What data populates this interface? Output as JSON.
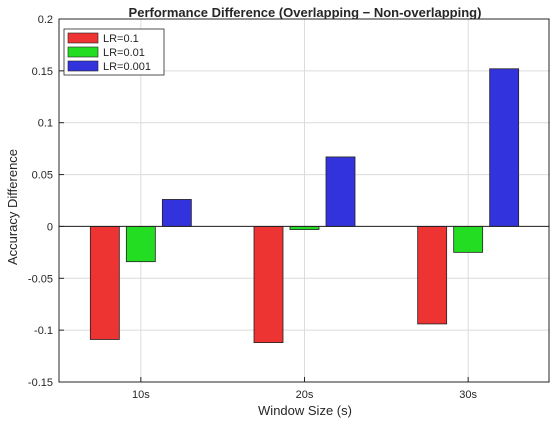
{
  "chart_data": {
    "type": "bar",
    "title": "Performance Difference (Overlapping − Non-overlapping)",
    "xlabel": "Window Size (s)",
    "ylabel": "Accuracy Difference",
    "categories": [
      "10s",
      "20s",
      "30s"
    ],
    "ylim": [
      -0.15,
      0.2
    ],
    "yticks": [
      -0.15,
      -0.1,
      -0.05,
      0,
      0.05,
      0.1,
      0.15,
      0.2
    ],
    "ytick_labels": [
      "-0.15",
      "-0.1",
      "-0.05",
      "0",
      "0.05",
      "0.1",
      "0.15",
      "0.2"
    ],
    "grid": true,
    "legend_position": "top-left",
    "series": [
      {
        "name": "LR=0.1",
        "color": "#ee3333",
        "values": [
          -0.109,
          -0.112,
          -0.094
        ]
      },
      {
        "name": "LR=0.01",
        "color": "#22dd22",
        "values": [
          -0.034,
          -0.003,
          -0.025
        ]
      },
      {
        "name": "LR=0.001",
        "color": "#3333dd",
        "values": [
          0.026,
          0.067,
          0.152
        ]
      }
    ]
  }
}
